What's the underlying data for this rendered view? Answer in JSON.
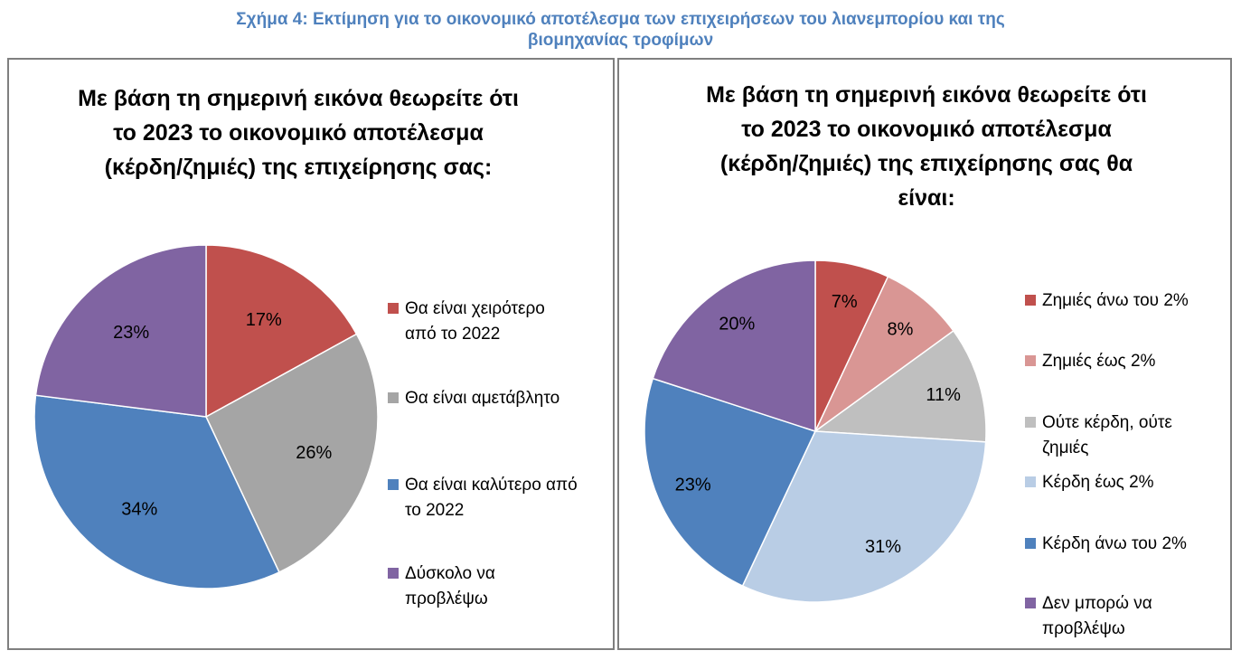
{
  "figure_title_line1": "Σχήμα 4: Εκτίμηση για το οικονομικό αποτέλεσμα των επιχειρήσεων του λιανεμπορίου και της",
  "figure_title_line2": "βιομηχανίας τροφίμων",
  "chart_data": [
    {
      "type": "pie",
      "title_lines": [
        "Με βάση τη σημερινή εικόνα θεωρείτε ότι",
        "το 2023 το οικονομικό αποτέλεσμα",
        "(κέρδη/ζημιές) της επιχείρησης σας:"
      ],
      "labels": [
        "Θα είναι χειρότερο από το 2022",
        "Θα είναι αμετάβλητο",
        "Θα είναι καλύτερο από το 2022",
        "Δύσκολο να προβλέψω"
      ],
      "legend_lines": [
        [
          "Θα είναι χειρότερο",
          "από το 2022"
        ],
        [
          "Θα είναι αμετάβλητο"
        ],
        [
          "Θα είναι καλύτερο από",
          "το 2022"
        ],
        [
          "Δύσκολο να",
          "προβλέψω"
        ]
      ],
      "values": [
        17,
        26,
        34,
        23
      ],
      "value_labels": [
        "17%",
        "26%",
        "34%",
        "23%"
      ],
      "colors": [
        "#c0504d",
        "#a5a5a5",
        "#4f81bd",
        "#8064a2"
      ],
      "legend_position": "right"
    },
    {
      "type": "pie",
      "title_lines": [
        "Με βάση τη σημερινή εικόνα θεωρείτε ότι",
        "το 2023 το οικονομικό αποτέλεσμα",
        "(κέρδη/ζημιές) της επιχείρησης σας θα",
        "είναι:"
      ],
      "labels": [
        "Ζημιές άνω του 2%",
        "Ζημιές έως 2%",
        "Ούτε κέρδη, ούτε ζημιές",
        "Κέρδη έως 2%",
        "Κέρδη άνω του 2%",
        "Δεν μπορώ να προβλέψω"
      ],
      "legend_lines": [
        [
          "Ζημιές άνω του 2%"
        ],
        [
          "Ζημιές έως 2%"
        ],
        [
          "Ούτε κέρδη, ούτε",
          "ζημιές"
        ],
        [
          "Κέρδη έως 2%"
        ],
        [
          "Κέρδη άνω του 2%"
        ],
        [
          "Δεν μπορώ να",
          "προβλέψω"
        ]
      ],
      "values": [
        7,
        8,
        11,
        31,
        23,
        20
      ],
      "value_labels": [
        "7%",
        "8%",
        "11%",
        "31%",
        "23%",
        "20%"
      ],
      "colors": [
        "#c0504d",
        "#d99694",
        "#bfbfbf",
        "#b9cde5",
        "#4f81bd",
        "#8064a2"
      ],
      "legend_position": "right"
    }
  ]
}
